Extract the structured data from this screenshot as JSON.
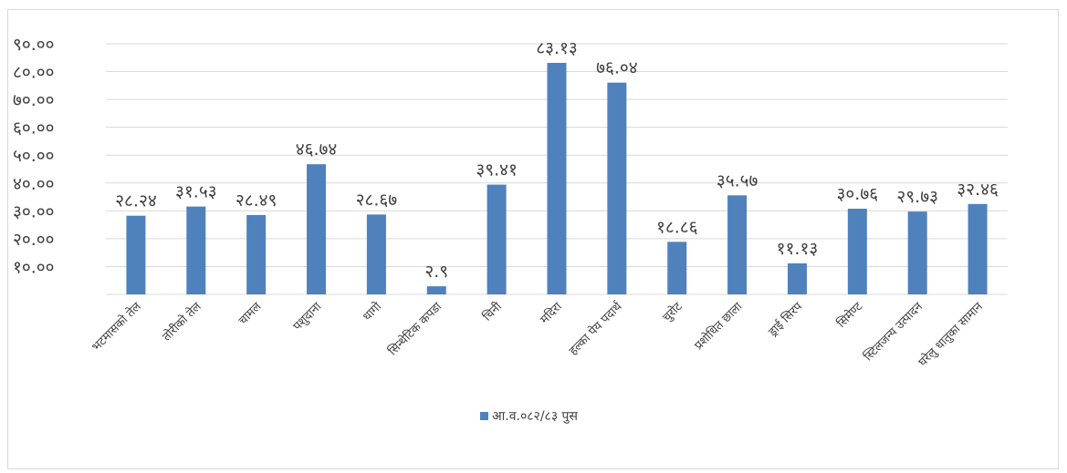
{
  "chart_data": {
    "type": "bar",
    "categories": [
      "भटमासको तेल",
      "तोरीको तेल",
      "चामल",
      "पशुदाना",
      "धागो",
      "सिन्थेटिक कपडा",
      "चिनी",
      "मदिरा",
      "हल्का पेय पदार्थ",
      "चुरोट",
      "प्रशोधित छाला",
      "ड्राई सिरप",
      "सिमेण्ट",
      "स्टिलजन्य उत्पादन",
      "घरेलु धातुका सामान"
    ],
    "series": [
      {
        "name": "आ.व.०८२/८३ पुस",
        "values": [
          28.24,
          31.53,
          28.49,
          46.74,
          28.67,
          2.9,
          39.41,
          83.13,
          76.04,
          18.86,
          35.57,
          11.13,
          30.76,
          29.73,
          32.46
        ],
        "data_labels": [
          "२८.२४",
          "३१.५३",
          "२८.४९",
          "४६.७४",
          "२८.६७",
          "२.९",
          "३९.४१",
          "८३.१३",
          "७६.०४",
          "१८.८६",
          "३५.५७",
          "११.१३",
          "३०.७६",
          "२९.७३",
          "३२.४६"
        ],
        "color": "#4f81bd"
      }
    ],
    "y_ticks": [
      10,
      20,
      30,
      40,
      50,
      60,
      70,
      80,
      90
    ],
    "y_tick_labels": [
      "१०.००",
      "२०.००",
      "३०.००",
      "४०.००",
      "५०.००",
      "६०.००",
      "७०.००",
      "८०.००",
      "९०.००"
    ],
    "ylim": [
      0,
      90
    ],
    "grid": true,
    "legend_position": "bottom",
    "title": "",
    "xlabel": "",
    "ylabel": ""
  },
  "colors": {
    "bar": "#4f81bd",
    "grid": "#d9d9d9",
    "text": "#404040"
  }
}
